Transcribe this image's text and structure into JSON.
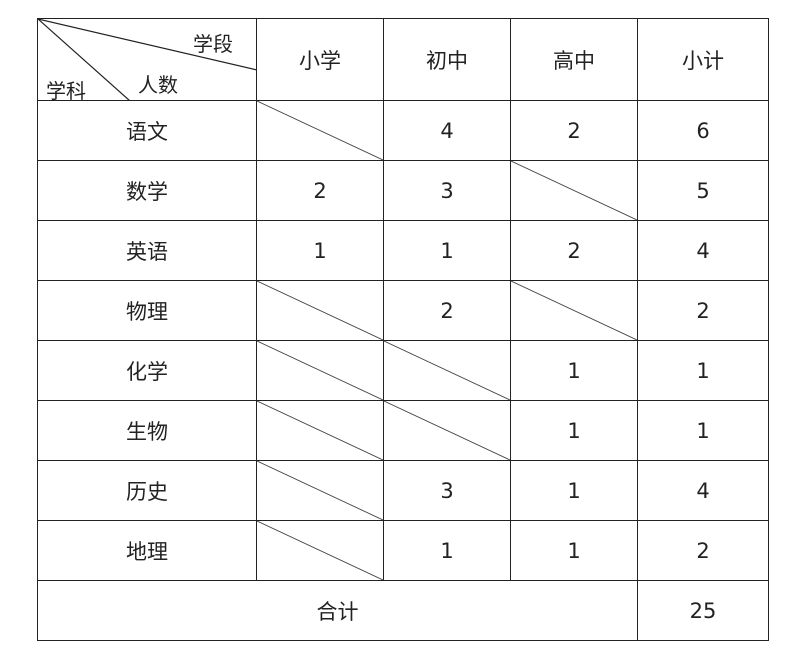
{
  "header": {
    "corner": {
      "stage_label": "学段",
      "count_label": "人数",
      "subject_label": "学科"
    },
    "columns": [
      "小学",
      "初中",
      "高中",
      "小计"
    ]
  },
  "rows": [
    {
      "subject": "语文",
      "values": [
        null,
        "4",
        "2",
        "6"
      ]
    },
    {
      "subject": "数学",
      "values": [
        "2",
        "3",
        null,
        "5"
      ]
    },
    {
      "subject": "英语",
      "values": [
        "1",
        "1",
        "2",
        "4"
      ]
    },
    {
      "subject": "物理",
      "values": [
        null,
        "2",
        null,
        "2"
      ]
    },
    {
      "subject": "化学",
      "values": [
        null,
        null,
        "1",
        "1"
      ]
    },
    {
      "subject": "生物",
      "values": [
        null,
        null,
        "1",
        "1"
      ]
    },
    {
      "subject": "历史",
      "values": [
        null,
        "3",
        "1",
        "4"
      ]
    },
    {
      "subject": "地理",
      "values": [
        null,
        "1",
        "1",
        "2"
      ]
    }
  ],
  "total": {
    "label": "合计",
    "value": "25"
  }
}
